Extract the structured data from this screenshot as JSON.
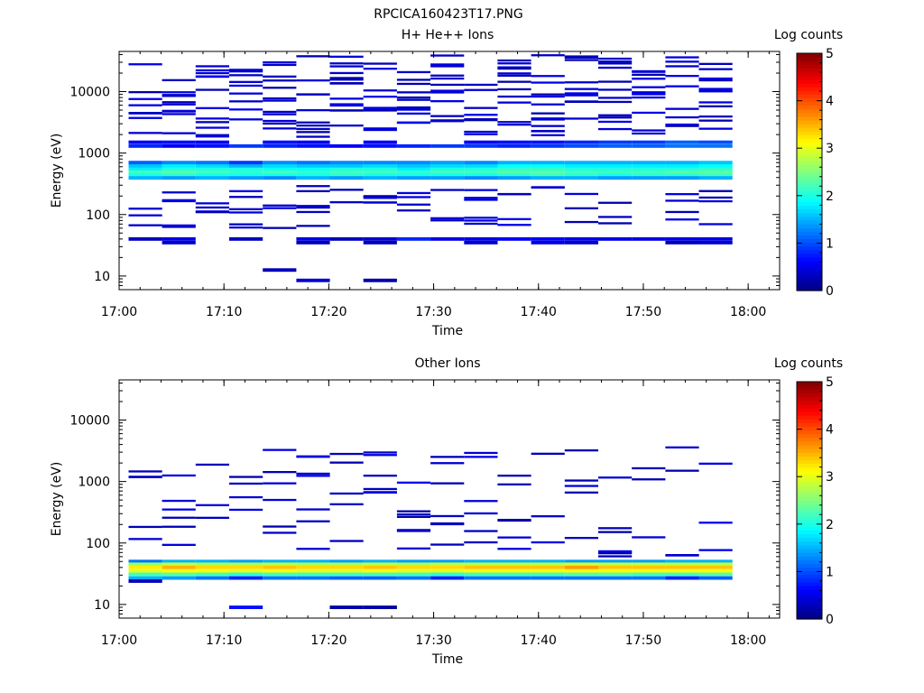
{
  "figure": {
    "title": "RPCICA160423T17.PNG"
  },
  "panels": [
    {
      "title": "H+ He++ Ions",
      "ylabel": "Energy (eV)",
      "xlabel": "Time",
      "cbar_label": "Log counts"
    },
    {
      "title": "Other Ions",
      "ylabel": "Energy (eV)",
      "xlabel": "Time",
      "cbar_label": "Log counts"
    }
  ],
  "chart_data": [
    {
      "type": "heatmap",
      "title": "H+ He++ Ions",
      "xlabel": "Time",
      "ylabel": "Energy (eV)",
      "colorbar_label": "Log counts",
      "colorbar_range": [
        0,
        5
      ],
      "colorbar_ticks": [
        "0",
        "1",
        "2",
        "3",
        "4",
        "5"
      ],
      "y_scale": "log",
      "ylim": [
        6,
        45000
      ],
      "xlim": [
        "17:00",
        "18:03"
      ],
      "x_ticks": [
        "17:00",
        "17:10",
        "17:20",
        "17:30",
        "17:40",
        "17:50",
        "18:00"
      ],
      "y_ticks": [
        "10",
        "100",
        "1000",
        "10000"
      ],
      "time_columns": [
        "17:02.5",
        "17:05.7",
        "17:08.9",
        "17:12.1",
        "17:15.3",
        "17:18.5",
        "17:21.7",
        "17:24.9",
        "17:28.1",
        "17:31.3",
        "17:34.5",
        "17:37.7",
        "17:40.9",
        "17:44.1",
        "17:47.3",
        "17:50.5",
        "17:53.7",
        "17:56.9"
      ],
      "rows": [
        {
          "e": 550,
          "v": [
            1.8,
            2.0,
            2.0,
            2.0,
            1.9,
            1.9,
            2.0,
            2.0,
            1.8,
            2.0,
            2.0,
            2.1,
            2.1,
            2.0,
            2.0,
            2.0,
            2.0,
            2.1
          ]
        },
        {
          "e": 490,
          "v": [
            2.2,
            2.3,
            2.2,
            2.1,
            2.2,
            2.1,
            2.2,
            2.2,
            2.1,
            2.2,
            2.2,
            2.3,
            2.3,
            2.2,
            2.2,
            2.2,
            2.3,
            2.3
          ]
        },
        {
          "e": 440,
          "v": [
            2.0,
            2.1,
            2.0,
            2.0,
            2.0,
            2.0,
            2.1,
            2.0,
            2.0,
            2.0,
            2.0,
            2.1,
            2.2,
            2.1,
            2.0,
            2.1,
            2.1,
            2.2
          ]
        },
        {
          "e": 620,
          "v": [
            1.6,
            1.8,
            1.7,
            1.5,
            1.7,
            1.6,
            1.6,
            1.7,
            1.6,
            1.7,
            1.7,
            1.9,
            1.9,
            1.8,
            1.8,
            1.8,
            1.8,
            1.9
          ]
        },
        {
          "e": 395,
          "v": [
            1.5,
            1.4,
            1.5,
            1.4,
            1.3,
            1.5,
            1.4,
            1.5,
            1.4,
            1.4,
            1.3,
            1.4,
            1.5,
            1.5,
            1.4,
            1.4,
            1.4,
            1.5
          ]
        },
        {
          "e": 700,
          "v": [
            1.1,
            1.3,
            1.2,
            0.9,
            1.3,
            1.2,
            1.3,
            1.3,
            1.3,
            1.4,
            1.3,
            1.5,
            1.5,
            1.5,
            1.5,
            1.5,
            1.5,
            1.6
          ]
        },
        {
          "e": 1300,
          "v": [
            0.8,
            0.6,
            0.7,
            0.9,
            0.8,
            0.7,
            0.6,
            0.7,
            0.8,
            0.9,
            0.9,
            0.8,
            0.9,
            1.0,
            1.1,
            1.1,
            1.2,
            1.2
          ]
        },
        {
          "e": 1500,
          "v": [
            0.6,
            0.7,
            0.6,
            0.0,
            0.7,
            0.6,
            0.0,
            0.6,
            0.0,
            0.0,
            0.6,
            0.7,
            0.7,
            0.8,
            0.9,
            0.9,
            1.1,
            1.0
          ]
        },
        {
          "e": 40,
          "v": [
            0.3,
            0.5,
            0.0,
            0.3,
            0.0,
            0.5,
            0.3,
            0.4,
            0.8,
            0.5,
            0.5,
            0.6,
            0.6,
            0.5,
            0.5,
            0.5,
            0.5,
            0.5
          ]
        },
        {
          "e": 35,
          "v": [
            0.0,
            0.4,
            0.0,
            0.0,
            0.0,
            0.3,
            0.0,
            0.3,
            0.0,
            0.0,
            0.4,
            0.0,
            0.5,
            0.4,
            0.0,
            0.0,
            0.3,
            0.4
          ]
        },
        {
          "e": 12.5,
          "v": [
            0,
            0,
            0,
            0,
            0.3,
            0,
            0,
            0,
            0,
            0,
            0,
            0,
            0,
            0,
            0,
            0,
            0,
            0
          ]
        },
        {
          "e": 8.5,
          "v": [
            0,
            0,
            0,
            0,
            0,
            0.4,
            0,
            0.2,
            0,
            0,
            0,
            0,
            0,
            0,
            0,
            0,
            0,
            0
          ]
        }
      ],
      "sparse_counts": "scattered single-count bins (log counts 0.2–0.6) between 30 eV and 40000 eV in every time column"
    },
    {
      "type": "heatmap",
      "title": "Other Ions",
      "xlabel": "Time",
      "ylabel": "Energy (eV)",
      "colorbar_label": "Log counts",
      "colorbar_range": [
        0,
        5
      ],
      "colorbar_ticks": [
        "0",
        "1",
        "2",
        "3",
        "4",
        "5"
      ],
      "y_scale": "log",
      "ylim": [
        6,
        45000
      ],
      "xlim": [
        "17:00",
        "18:03"
      ],
      "x_ticks": [
        "17:00",
        "17:10",
        "17:20",
        "17:30",
        "17:40",
        "17:50",
        "18:00"
      ],
      "y_ticks": [
        "10",
        "100",
        "1000",
        "10000"
      ],
      "time_columns": [
        "17:02.5",
        "17:05.7",
        "17:08.9",
        "17:12.1",
        "17:15.3",
        "17:18.5",
        "17:21.7",
        "17:24.9",
        "17:28.1",
        "17:31.3",
        "17:34.5",
        "17:37.7",
        "17:40.9",
        "17:44.1",
        "17:47.3",
        "17:50.5",
        "17:53.7",
        "17:56.9"
      ],
      "rows": [
        {
          "e": 50,
          "v": [
            1.2,
            1.5,
            1.5,
            1.4,
            1.5,
            1.5,
            1.4,
            1.5,
            1.4,
            1.4,
            1.5,
            1.5,
            1.5,
            1.4,
            1.4,
            1.4,
            1.5,
            1.5
          ]
        },
        {
          "e": 45,
          "v": [
            2.6,
            2.8,
            2.7,
            2.7,
            2.8,
            2.7,
            2.7,
            2.8,
            2.7,
            2.8,
            2.8,
            2.8,
            2.8,
            2.9,
            2.8,
            2.8,
            2.8,
            2.8
          ]
        },
        {
          "e": 40,
          "v": [
            3.2,
            3.5,
            3.3,
            3.3,
            3.4,
            3.3,
            3.3,
            3.4,
            3.3,
            3.3,
            3.4,
            3.4,
            3.4,
            3.6,
            3.4,
            3.4,
            3.4,
            3.4
          ]
        },
        {
          "e": 35,
          "v": [
            3.0,
            3.1,
            3.1,
            3.0,
            3.1,
            3.0,
            3.0,
            3.1,
            3.0,
            3.0,
            3.1,
            3.1,
            3.1,
            3.1,
            3.1,
            3.1,
            3.1,
            3.1
          ]
        },
        {
          "e": 31,
          "v": [
            2.2,
            2.3,
            2.2,
            2.1,
            2.2,
            2.2,
            2.2,
            2.2,
            2.2,
            2.1,
            2.2,
            2.2,
            2.2,
            2.3,
            2.3,
            2.2,
            2.2,
            2.3
          ]
        },
        {
          "e": 27,
          "v": [
            1.5,
            1.4,
            1.2,
            0.8,
            1.2,
            1.2,
            1.1,
            1.1,
            1.2,
            0.8,
            1.2,
            1.2,
            1.2,
            1.2,
            1.2,
            1.2,
            0.8,
            1.1
          ]
        },
        {
          "e": 24,
          "v": [
            0.3,
            0,
            0,
            0,
            0,
            0,
            0,
            0,
            0,
            0,
            0,
            0,
            0,
            0,
            0,
            0,
            0,
            0
          ]
        },
        {
          "e": 9,
          "v": [
            0,
            0,
            0,
            0.7,
            0,
            0,
            0.2,
            0.2,
            0,
            0,
            0,
            0,
            0,
            0,
            0,
            0,
            0,
            0
          ]
        }
      ],
      "sparse_counts": "scattered single-count bins (log counts 0.2–0.6) between 60 eV and 4000 eV"
    }
  ]
}
